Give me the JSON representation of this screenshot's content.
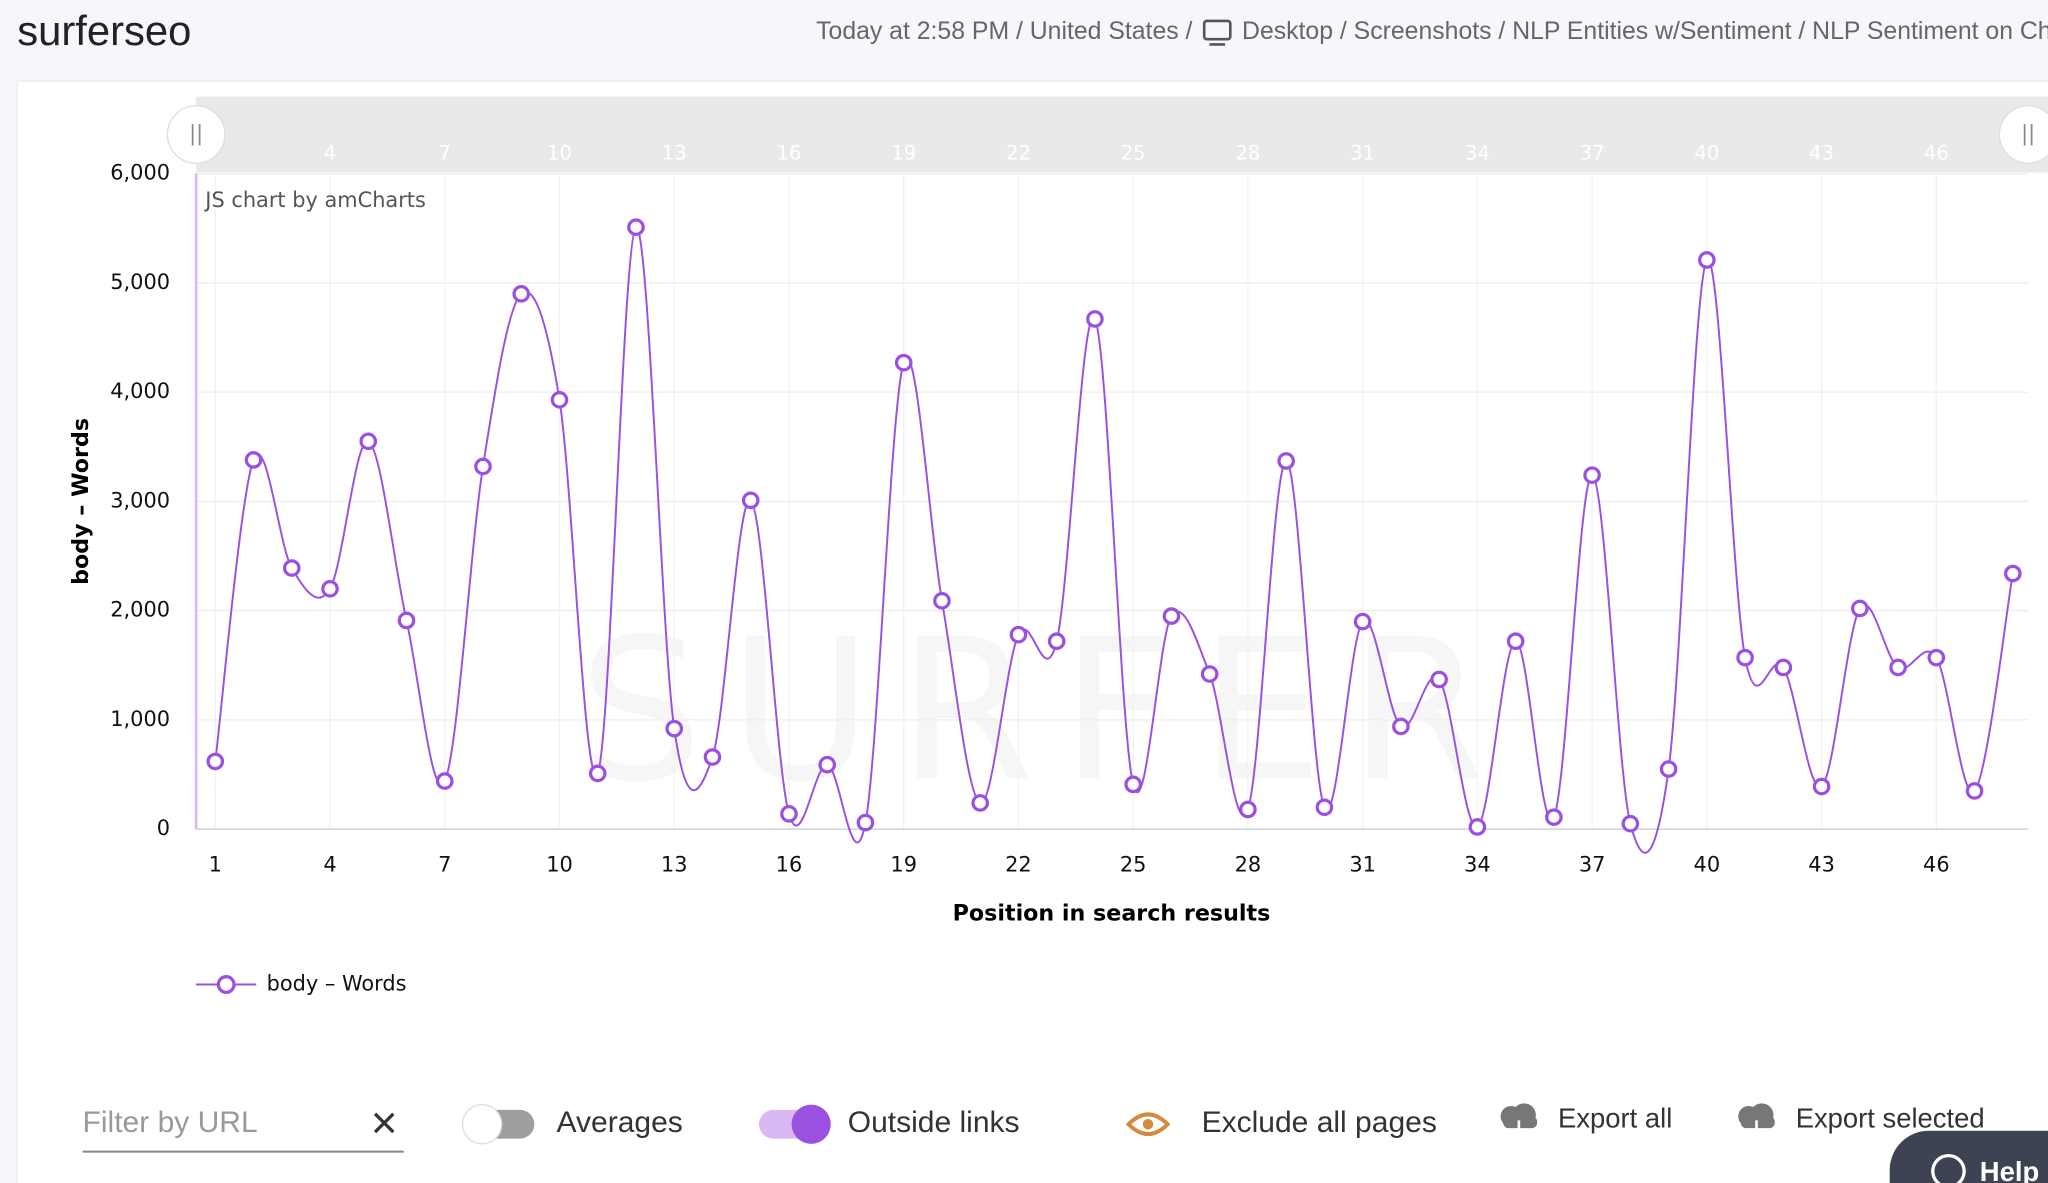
{
  "header": {
    "brand": "surferseo",
    "crumbs_left": "Today at 2:58 PM / United States /",
    "crumbs_right": "Desktop / Screenshots / NLP Entities w/Sentiment / NLP Sentiment on Cha"
  },
  "chart_data": {
    "type": "line",
    "credit": "JS chart by amCharts",
    "watermark": "SURFER",
    "x_label": "Position in search results",
    "y_label": "body – Words",
    "x": [
      1,
      2,
      3,
      4,
      5,
      6,
      7,
      8,
      9,
      10,
      11,
      12,
      13,
      14,
      15,
      16,
      17,
      18,
      19,
      20,
      21,
      22,
      23,
      24,
      25,
      26,
      27,
      28,
      29,
      30,
      31,
      32,
      33,
      34,
      35,
      36,
      37,
      38,
      39,
      40,
      41,
      42,
      43,
      44,
      45,
      46,
      47,
      48
    ],
    "series": [
      {
        "name": "body – Words",
        "color": "#9b51e0",
        "values": [
          620,
          3380,
          2390,
          2200,
          3550,
          1910,
          440,
          3320,
          4900,
          3930,
          510,
          5510,
          920,
          660,
          3010,
          140,
          590,
          60,
          4270,
          2090,
          240,
          1780,
          1720,
          4670,
          410,
          1950,
          1420,
          180,
          3370,
          200,
          1900,
          940,
          1370,
          20,
          1720,
          110,
          3240,
          50,
          550,
          5210,
          1570,
          1480,
          390,
          2020,
          1480,
          1570,
          350,
          2340
        ]
      }
    ],
    "xlim": [
      0.5,
      48.4
    ],
    "xticks": [
      1,
      4,
      7,
      10,
      13,
      16,
      19,
      22,
      25,
      28,
      31,
      34,
      37,
      40,
      43,
      46
    ],
    "ylim": [
      0,
      6000
    ],
    "yticks": [
      0,
      {
        "value": 1000,
        "label": "1,000"
      },
      {
        "value": 2000,
        "label": "2,000"
      },
      {
        "value": 3000,
        "label": "3,000"
      },
      {
        "value": 4000,
        "label": "4,000"
      },
      {
        "value": 5000,
        "label": "5,000"
      },
      {
        "value": 6000,
        "label": "6,000"
      }
    ],
    "grid": true
  },
  "controls": {
    "filter_placeholder": "Filter by URL",
    "averages": "Averages",
    "outside_links": "Outside links",
    "exclude": "Exclude all pages",
    "export_all": "Export all",
    "export_selected": "Export selected",
    "help": "Help"
  }
}
